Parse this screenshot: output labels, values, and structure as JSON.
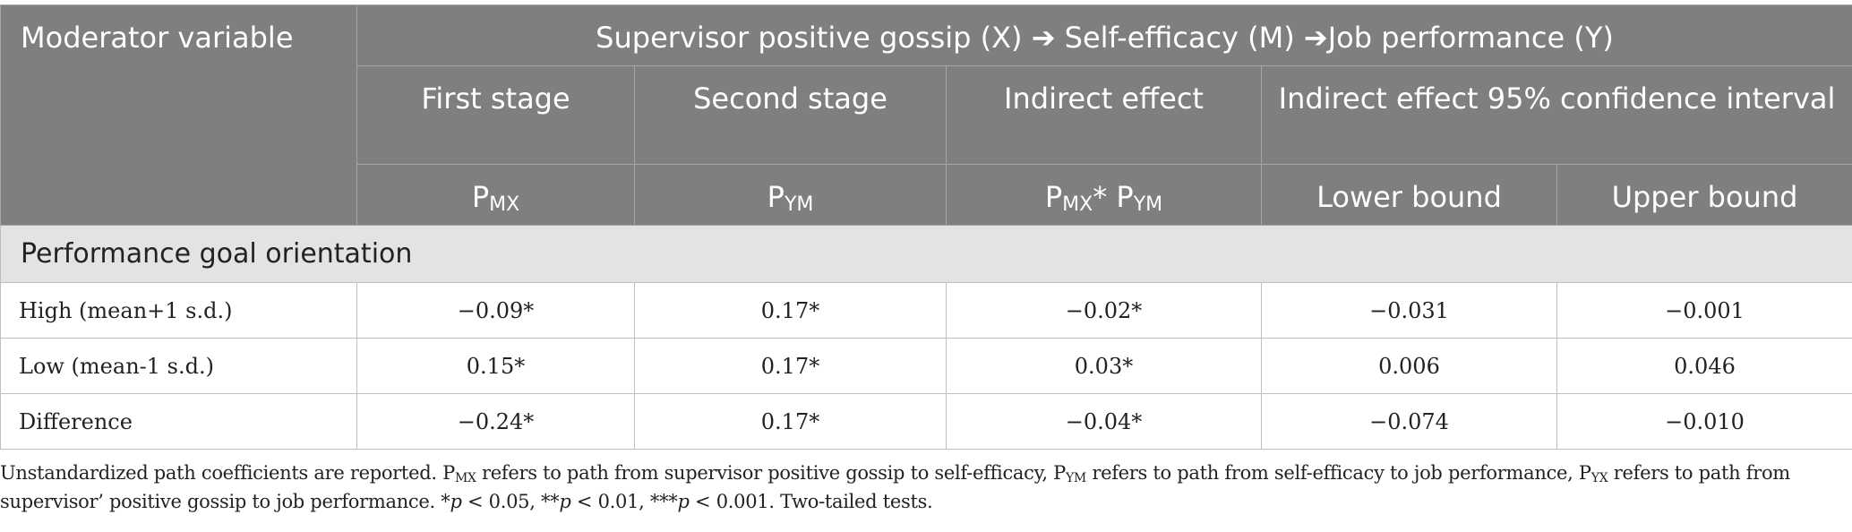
{
  "header": {
    "moderator_label": "Moderator variable",
    "model_title": "Supervisor positive gossip (X) ➔ Self-efficacy (M) ➔Job performance (Y)",
    "first_stage": "First stage",
    "second_stage": "Second stage",
    "indirect_effect": "Indirect effect",
    "ci_label": "Indirect effect 95% confidence interval",
    "p_mx": {
      "base": "P",
      "sub": "MX"
    },
    "p_ym": {
      "base": "P",
      "sub": "YM"
    },
    "p_product": {
      "base1": "P",
      "sub1": "MX",
      "star": "* ",
      "base2": "P",
      "sub2": "YM"
    },
    "lower_bound": "Lower bound",
    "upper_bound": "Upper bound"
  },
  "section": {
    "label": "Performance goal orientation"
  },
  "rows": [
    {
      "label": "High (mean+1 s.d.)",
      "first_stage": "−0.09*",
      "second_stage": "0.17*",
      "indirect": "−0.02*",
      "lower": "−0.031",
      "upper": "−0.001"
    },
    {
      "label": "Low (mean-1 s.d.)",
      "first_stage": "0.15*",
      "second_stage": "0.17*",
      "indirect": "0.03*",
      "lower": "0.006",
      "upper": "0.046"
    },
    {
      "label": "Difference",
      "first_stage": "−0.24*",
      "second_stage": "0.17*",
      "indirect": "−0.04*",
      "lower": "−0.074",
      "upper": "−0.010"
    }
  ],
  "footnote": {
    "part1": "Unstandardized path coefficients are reported. ",
    "p1": "P",
    "s1": "MX",
    "part2": " refers to path from supervisor positive gossip to self-efficacy, ",
    "p2": "P",
    "s2": "YM",
    "part3": " refers to path from self-efficacy to job performance, ",
    "p3": "P",
    "s3": "YX",
    "part4": " refers to path from supervisor’ positive gossip to job performance. *",
    "pvar1": "p",
    "part5": " < 0.05, **",
    "pvar2": "p",
    "part6": " < 0.01, ***",
    "pvar3": "p",
    "part7": " < 0.001. Two-tailed tests."
  }
}
